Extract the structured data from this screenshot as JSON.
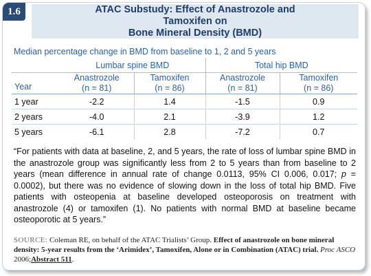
{
  "badge": "1.6",
  "header": {
    "title_line1": "ATAC Substudy: Effect of Anastrozole and Tamoxifen on",
    "title_line2": "Bone Mineral Density (BMD)"
  },
  "subtitle": "Median percentage change in BMD from baseline to 1, 2 and 5 years",
  "table": {
    "groups": [
      "Lumbar spine BMD",
      "Total hip BMD"
    ],
    "year_label": "Year",
    "columns": [
      {
        "name": "Anastrozole",
        "n": "(n = 81)"
      },
      {
        "name": "Tamoxifen",
        "n": "(n = 86)"
      },
      {
        "name": "Anastrozole",
        "n": "(n = 81)"
      },
      {
        "name": "Tamoxifen",
        "n": "(n = 86)"
      }
    ],
    "rows": [
      {
        "year": "1 year",
        "values": [
          "-2.2",
          "1.4",
          "-1.5",
          "0.9"
        ]
      },
      {
        "year": "2 years",
        "values": [
          "-4.0",
          "2.1",
          "-3.9",
          "1.2"
        ]
      },
      {
        "year": "5 years",
        "values": [
          "-6.1",
          "2.8",
          "-7.2",
          "0.7"
        ]
      }
    ]
  },
  "quote": {
    "part1": "“For patients with data at baseline, 2, and 5 years, the rate of loss of lumbar spine BMD in the anastrozole group was significantly less from 2 to 5 years than from baseline to 2 years (mean difference in annual rate of change 0.0113, 95% CI 0.006, 0.017; ",
    "p_symbol": "p",
    "part2": " = 0.0002), but there was no evidence of slowing down in the loss of total hip BMD. Five patients with osteopenia at baseline developed osteoporosis on treatment with anastrozole (4) or tamoxifen (1). No patients with normal BMD at baseline became osteoporotic at 5 years.”"
  },
  "source": {
    "label": "SOURCE:",
    "authors": " Coleman RE, on behalf of the ATAC Trialists’ Group. ",
    "title": "Effect of anastrozole on bone mineral density: 5-year results from the ‘Arimidex’, Tamoxifen, Alone or in Combination (ATAC) trial.",
    "journal": " Proc ASCO",
    "year": " 2006;",
    "link": "Abstract 511",
    "end": "."
  },
  "colors": {
    "accent_dark": "#2c4c78",
    "accent_text": "#2c5fa8",
    "header_bg": "#dfe8f0"
  }
}
